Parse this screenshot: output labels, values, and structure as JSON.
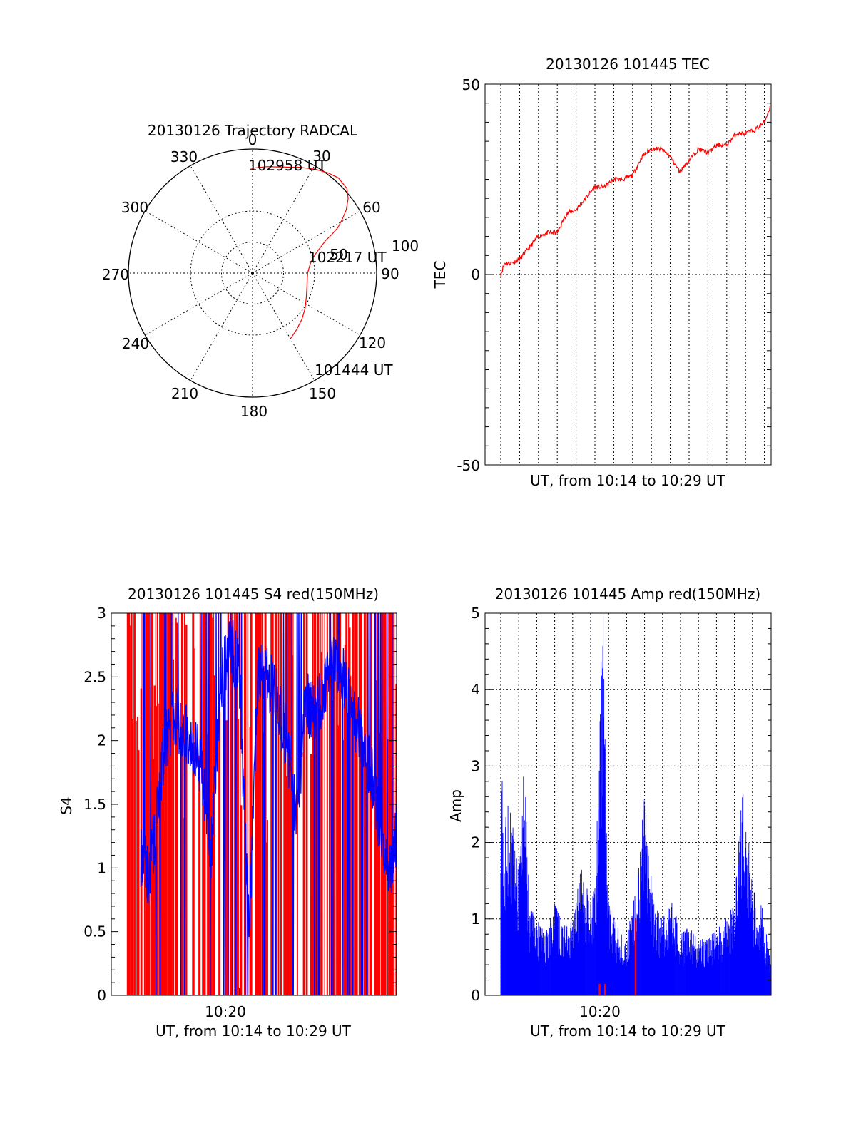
{
  "colors": {
    "red": "#ff0000",
    "blue": "#0000ff",
    "axis": "#000000",
    "grid": "#000000"
  },
  "chart_data": [
    {
      "type": "polar",
      "title": "20130126 Trajectory RADCAL",
      "angle_labels": [
        "0",
        "30",
        "60",
        "90",
        "120",
        "150",
        "180",
        "210",
        "240",
        "270",
        "300",
        "330"
      ],
      "radius_labels": [
        "50",
        "100"
      ],
      "rlim": [
        0,
        100
      ],
      "zero_direction": "top",
      "rotation": "clockwise",
      "series": [
        {
          "color": "red",
          "azimuth": [
            -1,
            8,
            16,
            24,
            31,
            37,
            42,
            48,
            52,
            56,
            59,
            62,
            64,
            66,
            69,
            72,
            76,
            82,
            90,
            98,
            106,
            115,
            124,
            133,
            142,
            150
          ],
          "elevation": [
            14,
            12,
            10,
            6,
            2,
            -1,
            -3,
            -2,
            2,
            8,
            14,
            20,
            26,
            32,
            37,
            41,
            45,
            48,
            50,
            50,
            49,
            47,
            44,
            41,
            38,
            35
          ]
        }
      ],
      "annotations": [
        "102958 UT",
        "102217 UT",
        "101444 UT"
      ],
      "grid": true
    },
    {
      "type": "line",
      "title": "20130126 101445 TEC",
      "xlabel": "UT, from 10:14 to 10:29 UT",
      "ylabel": "TEC",
      "ylim": [
        -50,
        50
      ],
      "yticks": [
        "50",
        "0",
        "-50"
      ],
      "grid": true,
      "series": [
        {
          "color": "red",
          "x": [
            0.0,
            0.2,
            0.5,
            1.0,
            1.5,
            2.0,
            2.5,
            3.0,
            3.5,
            4.0,
            4.5,
            5.0,
            5.5,
            6.0,
            6.5,
            7.0,
            7.5,
            8.0,
            8.5,
            9.0,
            9.5,
            10.0,
            10.5,
            11.0,
            11.5,
            12.0,
            12.5,
            13.0,
            13.5,
            14.0,
            14.3
          ],
          "y": [
            0,
            3,
            3,
            4,
            7,
            10,
            11,
            11,
            16,
            17,
            20,
            23,
            23,
            25,
            25,
            26,
            31,
            33,
            33,
            31,
            27,
            30,
            33,
            32,
            34,
            34,
            37,
            37,
            38,
            40,
            44
          ]
        }
      ]
    },
    {
      "type": "bar",
      "title": "20130126 101445 S4 red(150MHz)",
      "xlabel": "UT, from 10:14 to 10:29 UT",
      "ylabel": "S4",
      "ylim": [
        0,
        3
      ],
      "yticks": [
        "0",
        "0.5",
        "1",
        "1.5",
        "2",
        "2.5",
        "3"
      ],
      "xticks": [
        "10:20"
      ],
      "x_range_minutes": [
        0,
        15
      ],
      "series": [
        {
          "name": "",
          "color": "red",
          "style": "dense vertical lines",
          "approx_max": 3
        },
        {
          "name": "",
          "color": "blue",
          "x": [
            0.8,
            1.2,
            1.6,
            2.0,
            2.5,
            3.0,
            3.5,
            4.0,
            4.5,
            5.0,
            5.5,
            6.0,
            6.5,
            7.0,
            7.5,
            8.0,
            8.5,
            9.0,
            9.5,
            10.0,
            10.5,
            11.0,
            11.5,
            12.0,
            12.5,
            13.0,
            13.5,
            14.0,
            14.5,
            15.0
          ],
          "y": [
            1.1,
            0.95,
            1.3,
            1.9,
            2.2,
            2.1,
            2.0,
            1.8,
            1.1,
            2.4,
            2.8,
            2.5,
            0.5,
            2.6,
            2.5,
            2.3,
            2.0,
            1.4,
            2.3,
            2.2,
            2.4,
            2.6,
            2.5,
            2.2,
            2.0,
            1.7,
            1.2,
            1.0,
            1.5,
            2.0
          ]
        }
      ],
      "grid": false
    },
    {
      "type": "bar",
      "title": "20130126 101445 Amp red(150MHz)",
      "xlabel": "UT, from 10:14 to 10:29 UT",
      "ylabel": "Amp",
      "ylim": [
        0,
        5
      ],
      "yticks": [
        "0",
        "1",
        "2",
        "3",
        "4",
        "5"
      ],
      "xticks": [
        "10:20"
      ],
      "x_range_minutes": [
        0,
        15
      ],
      "grid": true,
      "series": [
        {
          "name": "",
          "color": "blue",
          "x": [
            0.0,
            0.2,
            0.5,
            0.8,
            1.0,
            1.3,
            1.6,
            2.0,
            2.5,
            3.0,
            3.5,
            4.0,
            4.5,
            5.0,
            5.3,
            5.5,
            5.7,
            6.0,
            6.5,
            7.0,
            7.5,
            8.0,
            8.5,
            9.0,
            9.5,
            10.0,
            10.5,
            11.0,
            11.5,
            12.0,
            12.5,
            13.0,
            13.5,
            14.0,
            14.5,
            15.0
          ],
          "y": [
            3.5,
            2.2,
            2.7,
            2.0,
            1.6,
            3.1,
            1.2,
            1.0,
            0.8,
            1.2,
            0.9,
            1.0,
            1.7,
            1.2,
            1.5,
            4.1,
            5.0,
            1.2,
            0.9,
            0.8,
            1.4,
            2.6,
            1.2,
            1.0,
            1.3,
            0.8,
            0.9,
            0.7,
            0.8,
            0.9,
            1.0,
            1.2,
            2.9,
            1.4,
            1.2,
            0.5
          ]
        },
        {
          "name": "",
          "color": "red",
          "x": [
            5.5,
            5.8,
            7.5
          ],
          "y": [
            0.15,
            0.15,
            1.0
          ]
        }
      ]
    }
  ]
}
